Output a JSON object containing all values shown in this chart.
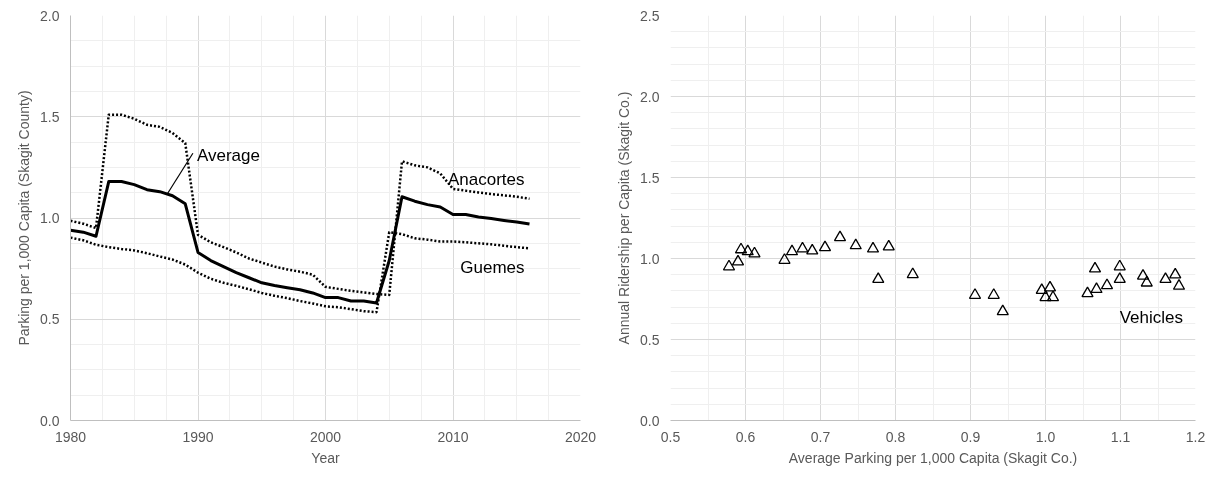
{
  "chart_data": [
    {
      "type": "line",
      "xlabel": "Year",
      "ylabel": "Parking per 1,000 Capita (Skagit County)",
      "xlim": [
        1980,
        2020
      ],
      "xticks": [
        1980,
        1990,
        2000,
        2010,
        2020
      ],
      "ylim": [
        0,
        2
      ],
      "yticks": [
        {
          "value": 0,
          "label": "0.0"
        },
        0.5,
        {
          "value": 1,
          "label": "1.0"
        },
        1.5,
        {
          "value": 2,
          "label": "2.0"
        }
      ],
      "grid": true,
      "x": [
        1980,
        1981,
        1982,
        1983,
        1984,
        1985,
        1986,
        1987,
        1988,
        1989,
        1990,
        1991,
        1992,
        1993,
        1994,
        1995,
        1996,
        1997,
        1998,
        1999,
        2000,
        2001,
        2002,
        2003,
        2004,
        2005,
        2006,
        2007,
        2008,
        2009,
        2010,
        2011,
        2012,
        2013,
        2014,
        2015,
        2016
      ],
      "series": [
        {
          "color": "#000000",
          "line_style": "solid",
          "values": [
            0.94,
            0.93,
            0.91,
            1.18,
            1.18,
            1.165,
            1.14,
            1.13,
            1.11,
            1.07,
            0.83,
            0.79,
            0.76,
            0.73,
            0.705,
            0.68,
            0.667,
            0.656,
            0.646,
            0.63,
            0.607,
            0.607,
            0.59,
            0.59,
            0.58,
            0.79,
            1.105,
            1.083,
            1.066,
            1.054,
            1.017,
            1.017,
            1.005,
            0.997,
            0.988,
            0.98,
            0.97
          ]
        },
        {
          "name": "Anacortes",
          "color": "#000000",
          "line_style": "dotted",
          "values": [
            0.986,
            0.972,
            0.95,
            1.51,
            1.51,
            1.49,
            1.46,
            1.45,
            1.42,
            1.37,
            0.917,
            0.88,
            0.856,
            0.83,
            0.8,
            0.78,
            0.76,
            0.746,
            0.735,
            0.72,
            0.66,
            0.65,
            0.64,
            0.633,
            0.625,
            0.62,
            1.28,
            1.26,
            1.25,
            1.22,
            1.144,
            1.135,
            1.126,
            1.118,
            1.112,
            1.105,
            1.095
          ]
        },
        {
          "name": "Guemes",
          "color": "#000000",
          "line_style": "dotted",
          "values": [
            0.903,
            0.89,
            0.868,
            0.856,
            0.847,
            0.84,
            0.826,
            0.81,
            0.795,
            0.77,
            0.73,
            0.7,
            0.68,
            0.665,
            0.648,
            0.63,
            0.616,
            0.604,
            0.59,
            0.578,
            0.564,
            0.559,
            0.55,
            0.54,
            0.535,
            0.93,
            0.92,
            0.9,
            0.893,
            0.884,
            0.884,
            0.88,
            0.875,
            0.87,
            0.863,
            0.856,
            0.85
          ]
        }
      ],
      "annotations": [
        {
          "text": "Average",
          "x": 1987.6,
          "y": 1.12
        }
      ]
    },
    {
      "type": "scatter",
      "xlabel": "Average Parking per 1,000 Capita (Skagit Co.)",
      "ylabel": "Annual Ridership per Capita (Skagit Co.)",
      "xlim": [
        0.5,
        1.2
      ],
      "xticks": [
        0.5,
        0.6,
        0.7,
        0.8,
        0.9,
        {
          "value": 1,
          "label": "1.0"
        },
        1.1,
        1.2
      ],
      "ylim": [
        0,
        2.5
      ],
      "yticks": [
        {
          "value": 0,
          "label": "0.0"
        },
        0.5,
        {
          "value": 1,
          "label": "1.0"
        },
        1.5,
        {
          "value": 2,
          "label": "2.0"
        },
        2.5
      ],
      "grid": true,
      "marker": "triangle",
      "series": [
        {
          "name": "Vehicles",
          "color": "#000000",
          "x": [
            0.578,
            0.59,
            0.594,
            0.603,
            0.612,
            0.652,
            0.662,
            0.676,
            0.689,
            0.706,
            0.726,
            0.747,
            0.77,
            0.777,
            0.791,
            0.823,
            0.906,
            0.931,
            0.943,
            0.995,
            1.006,
            1.0,
            1.01,
            1.056,
            1.066,
            1.068,
            1.082,
            1.099,
            1.099,
            1.13,
            1.135,
            1.16,
            1.173,
            1.178
          ],
          "values": [
            0.95,
            0.98,
            1.055,
            1.043,
            1.03,
            0.99,
            1.043,
            1.06,
            1.048,
            1.068,
            1.13,
            1.08,
            1.06,
            0.872,
            1.073,
            0.902,
            0.774,
            0.774,
            0.673,
            0.804,
            0.82,
            0.76,
            0.76,
            0.784,
            0.937,
            0.81,
            0.834,
            0.95,
            0.872,
            0.892,
            0.85,
            0.872,
            0.9,
            0.83
          ]
        }
      ]
    }
  ]
}
